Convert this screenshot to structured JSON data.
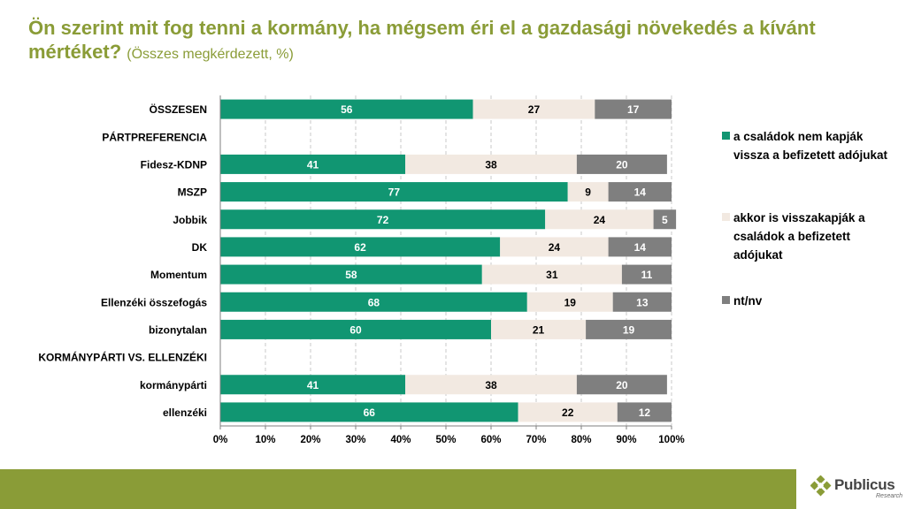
{
  "title": {
    "main": "Ön szerint mit fog tenni a kormány, ha mégsem éri el a gazdasági növekedés a kívánt mértéket?",
    "sub": "(Összes megkérdezett, %)"
  },
  "colors": {
    "title": "#8a9c37",
    "series_1": "#119672",
    "series_2": "#f2e9e1",
    "series_3": "#7f7f7f",
    "footer": "#8a9c37"
  },
  "chart_data": {
    "type": "bar",
    "orientation": "horizontal",
    "stacked": true,
    "percent": true,
    "title": "Ön szerint mit fog tenni a kormány, ha mégsem éri el a gazdasági növekedés a kívánt mértéket?",
    "subtitle": "(Összes megkérdezett, %)",
    "xlim": [
      0,
      100
    ],
    "xticks": [
      "0%",
      "10%",
      "20%",
      "30%",
      "40%",
      "50%",
      "60%",
      "70%",
      "80%",
      "90%",
      "100%"
    ],
    "grid": true,
    "legend_position": "right",
    "categories": [
      "ÖSSZESEN",
      "PÁRTPREFERENCIA",
      "Fidesz-KDNP",
      "MSZP",
      "Jobbik",
      "DK",
      "Momentum",
      "Ellenzéki összefogás",
      "bizonytalan",
      "KORMÁNYPÁRTI VS. ELLENZÉKI",
      "kormánypárti",
      "ellenzéki"
    ],
    "series": [
      {
        "name": "a családok nem kapják vissza a befizetett adójukat",
        "values": [
          56,
          null,
          41,
          77,
          72,
          62,
          58,
          68,
          60,
          null,
          41,
          66
        ]
      },
      {
        "name": "akkor is visszakapják a családok a befizetett adójukat",
        "values": [
          27,
          null,
          38,
          9,
          24,
          24,
          31,
          19,
          21,
          null,
          38,
          22
        ]
      },
      {
        "name": "nt/nv",
        "values": [
          17,
          null,
          20,
          14,
          5,
          14,
          11,
          13,
          19,
          null,
          20,
          12
        ]
      }
    ]
  },
  "legend": [
    {
      "label": "a családok nem kapják vissza a befizetett adójukat"
    },
    {
      "label": "akkor is visszakapják a családok a befizetett adójukat"
    },
    {
      "label": "nt/nv"
    }
  ],
  "logo": {
    "name": "Publicus",
    "sub": "Research"
  }
}
